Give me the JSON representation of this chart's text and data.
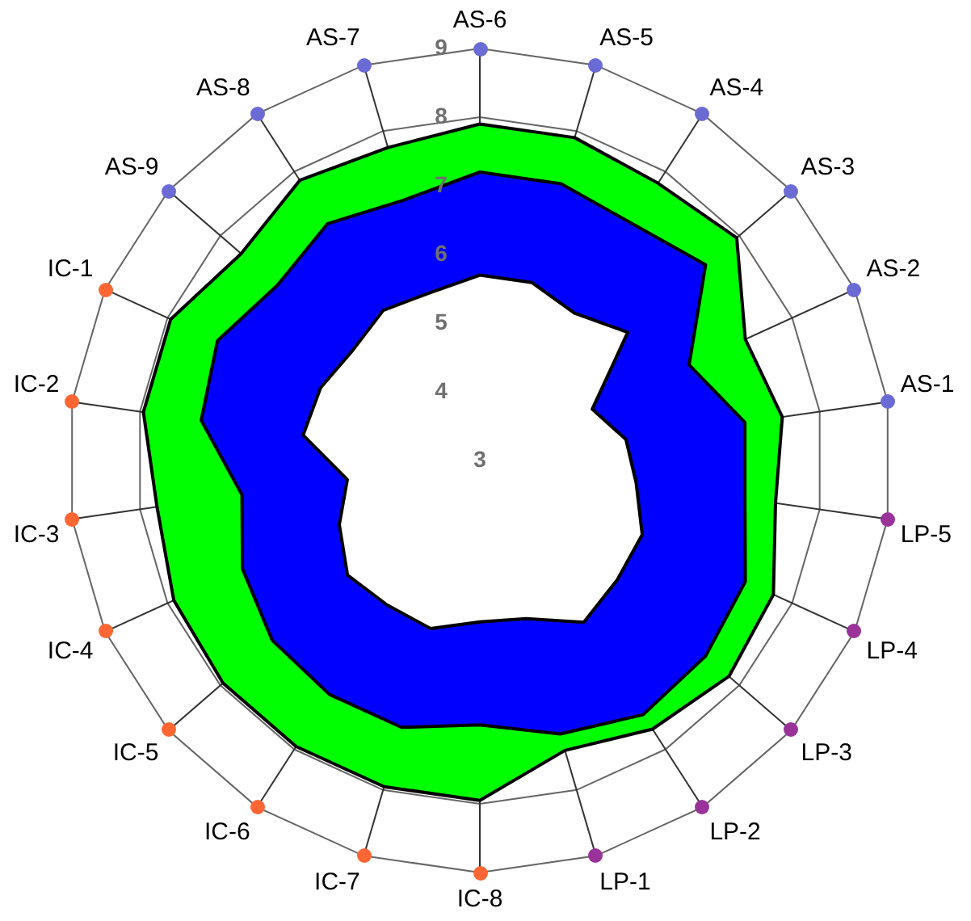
{
  "chart_data": {
    "type": "radar",
    "categories": [
      "AS-6",
      "AS-5",
      "AS-4",
      "AS-3",
      "AS-2",
      "AS-1",
      "LP-5",
      "LP-4",
      "LP-3",
      "LP-2",
      "LP-1",
      "IC-8",
      "IC-7",
      "IC-6",
      "IC-5",
      "IC-4",
      "IC-3",
      "IC-2",
      "IC-1",
      "AS-9",
      "AS-8",
      "AS-7"
    ],
    "ylim": [
      3,
      9
    ],
    "yticks": [
      3,
      4,
      5,
      6,
      7,
      8,
      9
    ],
    "grid": true,
    "legend": false,
    "series": [
      {
        "color": "#ffffff",
        "values": [
          5.7,
          5.7,
          5.55,
          5.85,
          4.8,
          5.15,
          5.3,
          5.6,
          5.65,
          5.8,
          5.4,
          5.35,
          5.55,
          5.5,
          5.55,
          5.25,
          4.95,
          5.6,
          5.55,
          5.45,
          5.6,
          5.55
        ]
      },
      {
        "color": "#0000ff",
        "values": [
          7.2,
          7.2,
          7.1,
          7.35,
          6.35,
          6.9,
          6.9,
          7.25,
          7.35,
          7.4,
          7.15,
          6.85,
          7.05,
          7.05,
          7.0,
          6.8,
          6.5,
          7.1,
          7.2,
          6.9,
          7.1,
          6.95
        ]
      },
      {
        "color": "#00ff00",
        "values": [
          7.9,
          7.9,
          7.8,
          7.95,
          7.25,
          7.45,
          7.35,
          7.7,
          7.8,
          7.65,
          7.4,
          7.95,
          7.95,
          7.95,
          7.95,
          7.9,
          7.75,
          7.95,
          7.95,
          7.6,
          7.85,
          7.75
        ]
      }
    ]
  }
}
